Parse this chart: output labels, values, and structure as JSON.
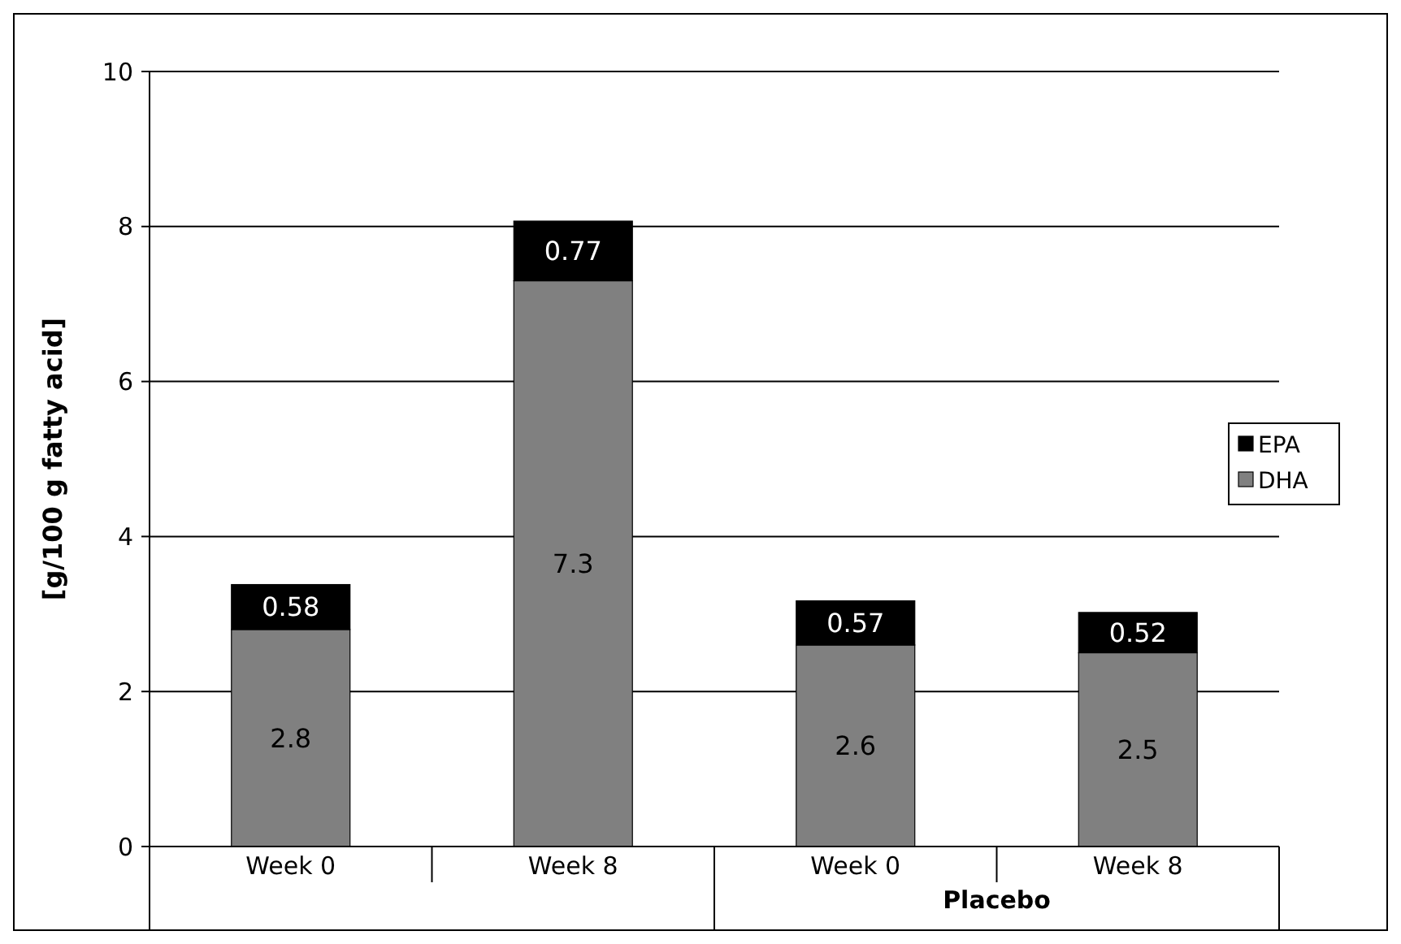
{
  "chart_data": {
    "type": "bar",
    "stacked": true,
    "ylabel": "[g/100 g fatty acid]",
    "categories": [
      "Week 0",
      "Week 8",
      "Week 0",
      "Week 8"
    ],
    "series": [
      {
        "name": "DHA",
        "color": "#808080",
        "values": [
          2.8,
          7.3,
          2.6,
          2.5
        ]
      },
      {
        "name": "EPA",
        "color": "#000000",
        "values": [
          0.58,
          0.77,
          0.57,
          0.52
        ]
      }
    ],
    "annotations": [
      "Placebo"
    ],
    "ylim": [
      0,
      10
    ],
    "yticks": [
      0,
      2,
      4,
      6,
      8,
      10
    ],
    "grid": "y",
    "legend": "right",
    "data_labels": true
  }
}
